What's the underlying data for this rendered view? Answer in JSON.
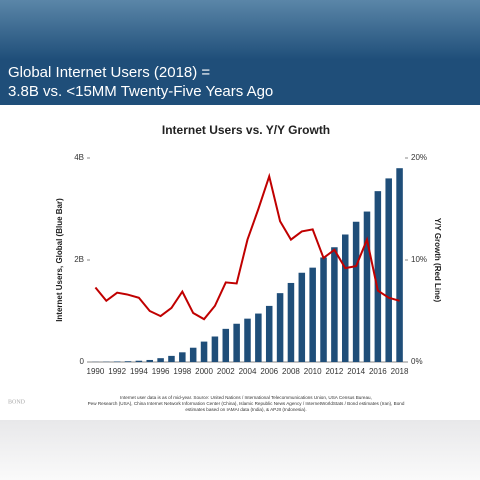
{
  "header": {
    "lines": [
      "Global Internet Users (2018) =",
      "3.8B vs. <15MM Twenty-Five Years Ago"
    ]
  },
  "chart_data": {
    "type": "bar",
    "title": "Internet Users vs. Y/Y Growth",
    "y_label": "Internet Users, Global (Blue Bar)",
    "y2_label": "Y/Y Growth (Red Line)",
    "categories": [
      "1990",
      null,
      "1992",
      null,
      "1994",
      null,
      "1996",
      null,
      "1998",
      null,
      "2000",
      null,
      "2002",
      null,
      "2004",
      null,
      "2006",
      null,
      "2008",
      null,
      "2010",
      null,
      "2012",
      null,
      "2014",
      null,
      "2016",
      null,
      "2018"
    ],
    "series": [
      {
        "type": "bar",
        "color": "#1f4e79",
        "values": [
          0.003,
          0.005,
          0.01,
          0.015,
          0.025,
          0.04,
          0.075,
          0.12,
          0.19,
          0.28,
          0.4,
          0.5,
          0.65,
          0.75,
          0.85,
          0.95,
          1.1,
          1.35,
          1.55,
          1.75,
          1.85,
          2.05,
          2.25,
          2.5,
          2.75,
          2.95,
          3.35,
          3.6,
          3.8
        ]
      },
      {
        "type": "line",
        "axis": "y2",
        "color": "#c00000",
        "values": [
          7.3,
          6,
          6.8,
          6.6,
          6.3,
          5,
          4.5,
          5.3,
          6.9,
          4.8,
          4.2,
          5.5,
          7.8,
          7.7,
          12,
          15,
          18.2,
          13.8,
          12,
          12.8,
          13,
          10.2,
          11,
          9.2,
          9.4,
          12,
          7,
          6.3,
          6
        ]
      }
    ],
    "ylim": [
      0,
      4
    ],
    "yticks": [
      0,
      {
        "value": 2,
        "label": "2B"
      },
      {
        "value": 4,
        "label": "4B"
      }
    ],
    "y2lim": [
      0,
      20
    ],
    "y2ticks": [
      {
        "value": 0,
        "label": "0%"
      },
      {
        "value": 10,
        "label": "10%"
      },
      {
        "value": 20,
        "label": "20%"
      }
    ]
  },
  "footnote": [
    "Internet user data is as of mid-year.  Source: United Nations / International Telecommunications Union, USA Census Bureau,",
    "Pew Research (USA), China Internet Network Information Center (China), Islamic Republic News Agency / InternetWorldStats / Bond estimates (Iran), Bond",
    "estimates based on IAMAI data (India), & APJII (Indonesia)."
  ],
  "logo": "BOND"
}
